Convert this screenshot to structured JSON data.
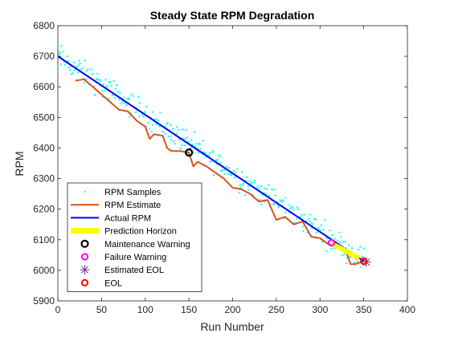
{
  "chart_data": {
    "type": "line",
    "title": "Steady State RPM Degradation",
    "xlabel": "Run Number",
    "ylabel": "RPM",
    "xlim": [
      0,
      400
    ],
    "ylim": [
      5900,
      6800
    ],
    "xticks": [
      0,
      50,
      100,
      150,
      200,
      250,
      300,
      350,
      400
    ],
    "yticks": [
      5900,
      6000,
      6100,
      6200,
      6300,
      6400,
      6500,
      6600,
      6700,
      6800
    ],
    "grid": false,
    "legend_position": "bottom-left",
    "colors": {
      "samples": "#00ffff",
      "estimate": "#d95319",
      "actual": "#0000ff",
      "horizon": "#ffff00",
      "maintenance": "#000000",
      "failure": "#ff00ff",
      "estimated_eol": "#7e2f8e",
      "eol": "#ff0000"
    },
    "legend": [
      {
        "key": "samples",
        "label": "RPM Samples"
      },
      {
        "key": "estimate",
        "label": "RPM Estimate"
      },
      {
        "key": "actual",
        "label": "Actual RPM"
      },
      {
        "key": "horizon",
        "label": "Prediction Horizon"
      },
      {
        "key": "maintenance",
        "label": "Maintenance Warning"
      },
      {
        "key": "failure",
        "label": "Failure Warning"
      },
      {
        "key": "estimated_eol",
        "label": "Estimated EOL"
      },
      {
        "key": "eol",
        "label": "EOL"
      }
    ],
    "series": [
      {
        "key": "actual",
        "x": [
          0,
          350
        ],
        "y": [
          6700,
          6030
        ]
      },
      {
        "key": "estimate",
        "x": [
          20,
          30,
          40,
          50,
          60,
          70,
          80,
          90,
          100,
          105,
          110,
          120,
          125,
          130,
          140,
          150,
          155,
          160,
          170,
          180,
          190,
          200,
          210,
          220,
          230,
          240,
          250,
          260,
          270,
          280,
          290,
          300,
          310,
          320,
          330,
          335,
          340,
          345,
          350
        ],
        "y": [
          6620,
          6625,
          6600,
          6575,
          6550,
          6525,
          6520,
          6490,
          6470,
          6430,
          6445,
          6440,
          6400,
          6390,
          6390,
          6385,
          6340,
          6355,
          6340,
          6320,
          6300,
          6270,
          6265,
          6250,
          6225,
          6230,
          6165,
          6175,
          6150,
          6160,
          6110,
          6105,
          6085,
          6080,
          6060,
          6020,
          6020,
          6025,
          6030
        ]
      },
      {
        "key": "horizon",
        "x": [
          313,
          345
        ],
        "y": [
          6088,
          6040
        ]
      }
    ],
    "markers": [
      {
        "key": "maintenance",
        "x": 150,
        "y": 6385
      },
      {
        "key": "failure",
        "x": 313,
        "y": 6090
      },
      {
        "key": "estimated_eol",
        "x": 353,
        "y": 6027
      },
      {
        "key": "eol",
        "x": 350,
        "y": 6030
      }
    ],
    "samples": {
      "x_start": 0,
      "x_end": 352,
      "count": 330,
      "trend_start": 6700,
      "trend_end": 6030,
      "spread": 38
    }
  }
}
